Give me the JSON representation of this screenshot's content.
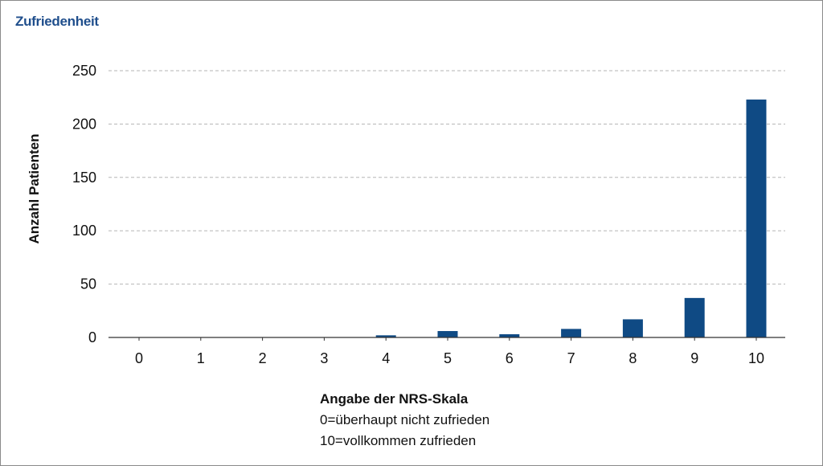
{
  "chart_data": {
    "type": "bar",
    "title": "Zufriedenheit",
    "xlabel": "Angabe der NRS-Skala",
    "xlabel_notes": [
      "0=überhaupt nicht zufrieden",
      "10=vollkommen zufrieden"
    ],
    "ylabel": "Anzahl Patienten",
    "categories": [
      "0",
      "1",
      "2",
      "3",
      "4",
      "5",
      "6",
      "7",
      "8",
      "9",
      "10"
    ],
    "values": [
      0,
      0,
      0,
      0,
      2,
      6,
      3,
      8,
      17,
      37,
      223
    ],
    "ylim": [
      0,
      250
    ],
    "yticks": [
      0,
      50,
      100,
      150,
      200,
      250
    ],
    "grid": true,
    "bar_color": "#0f4a84",
    "title_color": "#1f4e8c"
  }
}
